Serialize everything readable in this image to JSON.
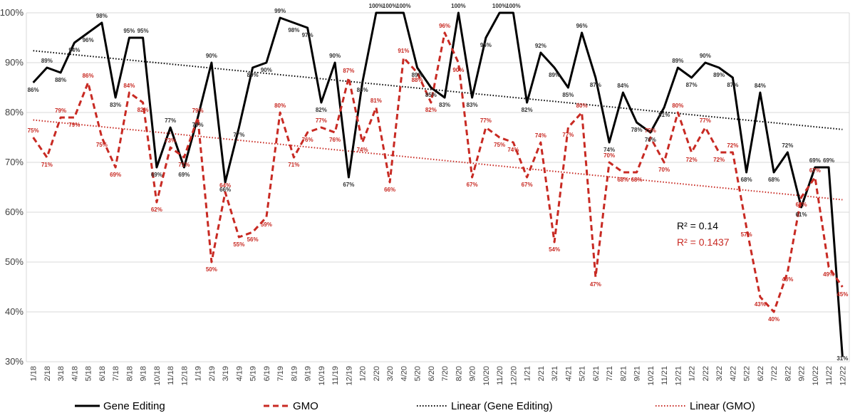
{
  "chart_data": {
    "type": "line",
    "title": "",
    "xlabel": "",
    "ylabel": "",
    "ylim": [
      30,
      100
    ],
    "y_ticks": [
      "30%",
      "40%",
      "50%",
      "60%",
      "70%",
      "80%",
      "90%",
      "100%"
    ],
    "grid": true,
    "categories": [
      "1/18",
      "2/18",
      "3/18",
      "4/18",
      "5/18",
      "6/18",
      "7/18",
      "8/18",
      "9/18",
      "10/18",
      "11/18",
      "12/18",
      "1/19",
      "2/19",
      "3/19",
      "4/19",
      "5/19",
      "6/19",
      "7/19",
      "8/19",
      "9/19",
      "10/19",
      "11/19",
      "12/19",
      "1/20",
      "2/20",
      "3/20",
      "4/20",
      "5/20",
      "6/20",
      "7/20",
      "8/20",
      "9/20",
      "10/20",
      "11/20",
      "12/20",
      "1/21",
      "2/21",
      "3/21",
      "4/21",
      "5/21",
      "6/21",
      "7/21",
      "8/21",
      "9/21",
      "10/21",
      "11/21",
      "12/21",
      "1/22",
      "2/22",
      "3/22",
      "4/22",
      "5/22",
      "6/22",
      "7/22",
      "8/22",
      "9/22",
      "10/22",
      "11/22",
      "12/22"
    ],
    "series": [
      {
        "name": "Gene Editing",
        "color": "#000000",
        "style": "solid",
        "values": [
          86,
          89,
          88,
          94,
          96,
          98,
          83,
          95,
          95,
          69,
          77,
          69,
          79,
          90,
          66,
          77,
          89,
          90,
          99,
          98,
          97,
          82,
          90,
          67,
          86,
          100,
          100,
          100,
          89,
          85,
          83,
          100,
          83,
          95,
          100,
          100,
          82,
          92,
          89,
          85,
          96,
          87,
          74,
          84,
          78,
          76,
          81,
          89,
          87,
          90,
          89,
          87,
          68,
          84,
          68,
          72,
          61,
          69,
          69,
          31
        ],
        "labels": [
          "86%",
          "89%",
          "88%",
          "94%",
          "96%",
          "98%",
          "83%",
          "95%",
          "95%",
          "69%",
          "77%",
          "69%",
          "79%",
          "90%",
          "66%",
          "77%",
          "89%",
          "90%",
          "99%",
          "98%",
          "97%",
          "82%",
          "90%",
          "67%",
          "86%",
          "100%",
          "100%",
          "100%",
          "89%",
          "85%",
          "83%",
          "100%",
          "83%",
          "95%",
          "100%",
          "100%",
          "82%",
          "92%",
          "89%",
          "85%",
          "96%",
          "87%",
          "74%",
          "84%",
          "78%",
          "76%",
          "81%",
          "89%",
          "87%",
          "90%",
          "89%",
          "87%",
          "68%",
          "84%",
          "68%",
          "72%",
          "61%",
          "69%",
          "69%",
          "31%"
        ]
      },
      {
        "name": "GMO",
        "color": "#c82a23",
        "style": "dashed",
        "values": [
          75,
          71,
          79,
          79,
          86,
          75,
          69,
          84,
          82,
          62,
          73,
          71,
          79,
          50,
          64,
          55,
          56,
          59,
          80,
          71,
          76,
          77,
          76,
          87,
          74,
          81,
          66,
          91,
          88,
          82,
          96,
          90,
          67,
          77,
          75,
          74,
          67,
          74,
          54,
          77,
          80,
          47,
          70,
          68,
          68,
          75,
          70,
          80,
          72,
          77,
          72,
          72,
          57,
          43,
          40,
          48,
          63,
          67,
          49,
          45
        ],
        "labels": [
          "75%",
          "71%",
          "79%",
          "79%",
          "86%",
          "75%",
          "69%",
          "84%",
          "82%",
          "62%",
          "73%",
          "71%",
          "79%",
          "50%",
          "64%",
          "55%",
          "56%",
          "59%",
          "80%",
          "71%",
          "76%",
          "77%",
          "76%",
          "87%",
          "74%",
          "81%",
          "66%",
          "91%",
          "88%",
          "82%",
          "96%",
          "90%",
          "67%",
          "77%",
          "75%",
          "74%",
          "67%",
          "74%",
          "54%",
          "77%",
          "80%",
          "47%",
          "70%",
          "68%",
          "68%",
          "75%",
          "70%",
          "80%",
          "72%",
          "77%",
          "72%",
          "72%",
          "57%",
          "43%",
          "40%",
          "48%",
          "63%",
          "67%",
          "49%",
          "45%"
        ]
      }
    ],
    "trendlines": [
      {
        "name": "Linear (Gene Editing)",
        "color": "#000000",
        "style": "dotted",
        "start": 92.4,
        "end": 76.6,
        "r2_label": "R² = 0.14"
      },
      {
        "name": "Linear (GMO)",
        "color": "#c82a23",
        "style": "dotted",
        "start": 78.5,
        "end": 62.5,
        "r2_label": "R² = 0.1437"
      }
    ],
    "legend": {
      "position": "bottom",
      "entries": [
        "Gene Editing",
        "GMO",
        "Linear (Gene Editing)",
        "Linear (GMO)"
      ]
    }
  }
}
